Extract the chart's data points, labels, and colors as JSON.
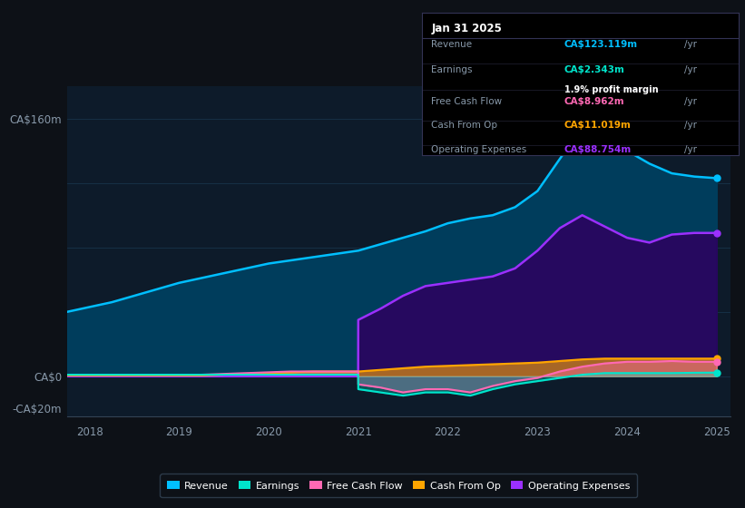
{
  "bg_color": "#0d1117",
  "plot_bg_color": "#0d1b2a",
  "grid_color": "#1a3a52",
  "ylabel_160": "CA$160m",
  "ylabel_0": "CA$0",
  "ylabel_neg20": "-CA$20m",
  "ylim": [
    -25,
    180
  ],
  "years": [
    2017.75,
    2018.0,
    2018.25,
    2018.5,
    2018.75,
    2019.0,
    2019.25,
    2019.5,
    2019.75,
    2020.0,
    2020.25,
    2020.5,
    2020.75,
    2020.999,
    2021.0,
    2021.25,
    2021.5,
    2021.75,
    2022.0,
    2022.25,
    2022.5,
    2022.75,
    2023.0,
    2023.25,
    2023.5,
    2023.75,
    2024.0,
    2024.25,
    2024.5,
    2024.75,
    2025.0
  ],
  "revenue": [
    40,
    43,
    46,
    50,
    54,
    58,
    61,
    64,
    67,
    70,
    72,
    74,
    76,
    78,
    78,
    82,
    86,
    90,
    95,
    98,
    100,
    105,
    115,
    135,
    155,
    148,
    140,
    132,
    126,
    124,
    123
  ],
  "operating_expenses": [
    0,
    0,
    0,
    0,
    0,
    0,
    0,
    0,
    0,
    0,
    0,
    0,
    0,
    0,
    35,
    42,
    50,
    56,
    58,
    60,
    62,
    67,
    78,
    92,
    100,
    93,
    86,
    83,
    88,
    89,
    89
  ],
  "earnings": [
    1,
    1,
    1,
    1,
    1,
    1,
    1,
    1,
    1,
    1,
    1,
    1,
    1,
    1,
    -8,
    -10,
    -12,
    -10,
    -10,
    -12,
    -8,
    -5,
    -3,
    -1,
    1,
    2,
    2,
    2,
    2,
    2.2,
    2.3
  ],
  "free_cash_flow": [
    1,
    1,
    1,
    1,
    1,
    1,
    1,
    1.5,
    2,
    2.5,
    3,
    3,
    3,
    3,
    -5,
    -7,
    -10,
    -8,
    -8,
    -10,
    -6,
    -3,
    -1,
    3,
    6,
    8,
    9,
    9,
    9.5,
    9,
    9
  ],
  "cash_from_op": [
    0.5,
    0.5,
    0.5,
    0.5,
    0.5,
    0.5,
    0.5,
    1,
    1.5,
    2,
    2.5,
    3,
    3,
    3,
    3,
    4,
    5,
    6,
    6.5,
    7,
    7.5,
    8,
    8.5,
    9.5,
    10.5,
    11,
    11,
    11,
    11,
    11,
    11
  ],
  "revenue_color": "#00bfff",
  "earnings_color": "#00e5cc",
  "free_cash_flow_color": "#ff69b4",
  "cash_from_op_color": "#ffa500",
  "operating_expenses_color": "#9b30ff",
  "revenue_fill": "#003d5c",
  "op_exp_fill": "#2d0060",
  "legend_labels": [
    "Revenue",
    "Earnings",
    "Free Cash Flow",
    "Cash From Op",
    "Operating Expenses"
  ],
  "info_box": {
    "date": "Jan 31 2025",
    "revenue_label": "Revenue",
    "revenue_value": "CA$123.119m",
    "revenue_color": "#00bfff",
    "earnings_label": "Earnings",
    "earnings_value": "CA$2.343m",
    "earnings_color": "#00e5cc",
    "margin_text": "1.9% profit margin",
    "fcf_label": "Free Cash Flow",
    "fcf_value": "CA$8.962m",
    "fcf_color": "#ff69b4",
    "cfop_label": "Cash From Op",
    "cfop_value": "CA$11.019m",
    "cfop_color": "#ffa500",
    "opex_label": "Operating Expenses",
    "opex_value": "CA$88.754m",
    "opex_color": "#9b30ff"
  },
  "xmin": 2017.75,
  "xmax": 2025.15
}
